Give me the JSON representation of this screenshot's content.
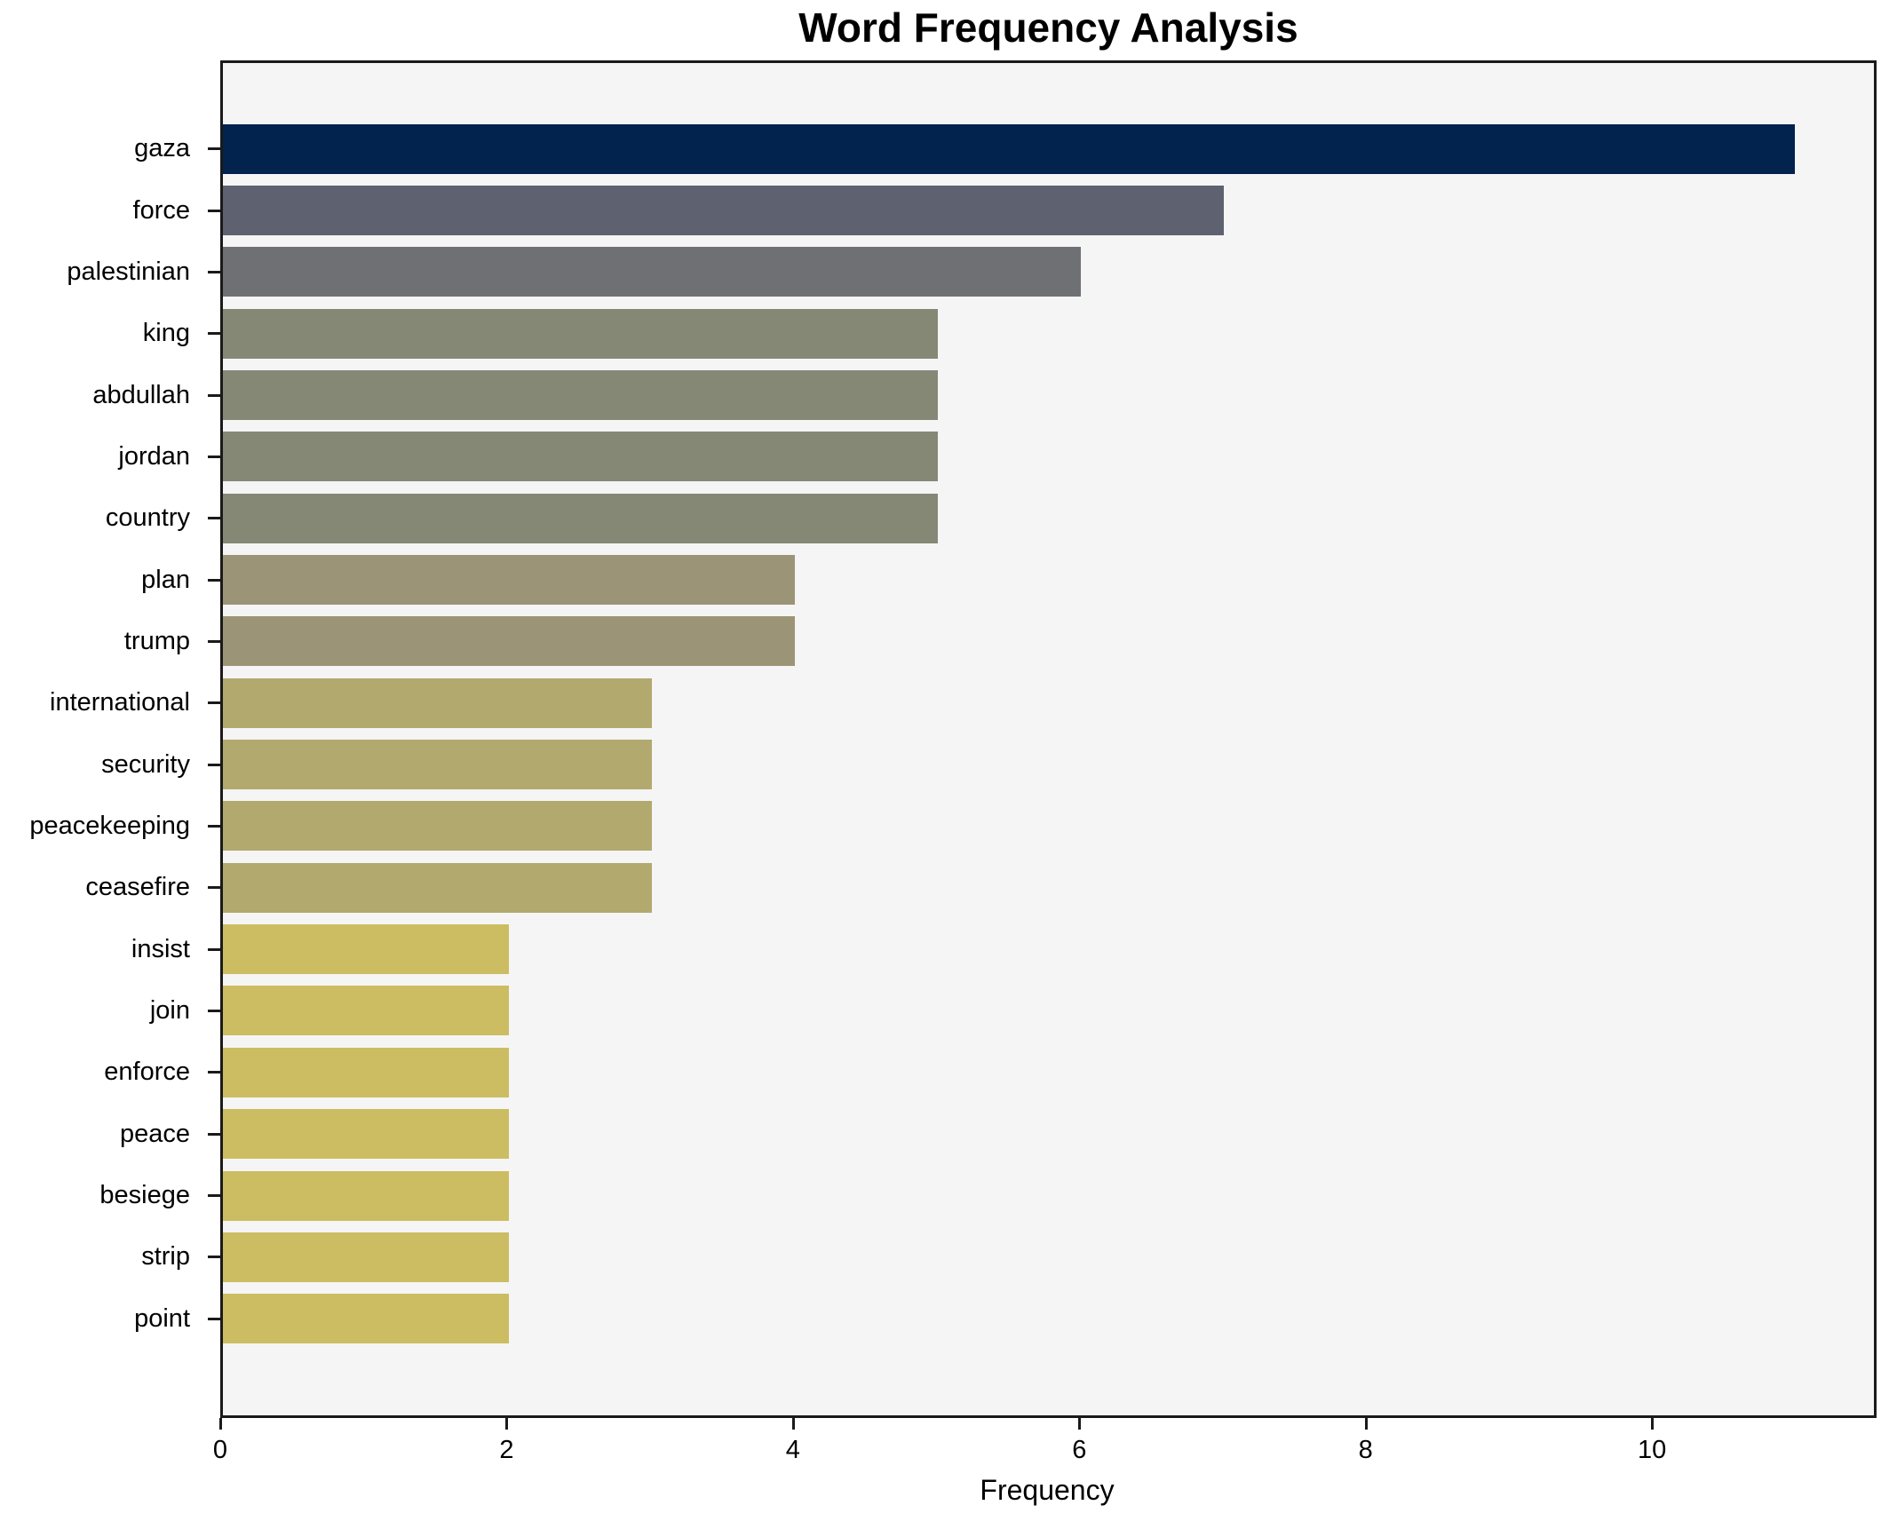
{
  "page": {
    "background": "#ffffff"
  },
  "chart": {
    "title": "Word Frequency Analysis",
    "xlabel": "Frequency",
    "plot_background": "#f5f5f6",
    "spine_color": "#1a1a1a",
    "text_color": "#000000"
  },
  "chart_data": {
    "type": "bar",
    "orientation": "horizontal",
    "title": "Word Frequency Analysis",
    "xlabel": "Frequency",
    "ylabel": "",
    "grid": false,
    "legend": null,
    "xlim": [
      0,
      11.55
    ],
    "xticks": [
      0,
      2,
      4,
      6,
      8,
      10
    ],
    "categories": [
      "gaza",
      "force",
      "palestinian",
      "king",
      "abdullah",
      "jordan",
      "country",
      "plan",
      "trump",
      "international",
      "security",
      "peacekeeping",
      "ceasefire",
      "insist",
      "join",
      "enforce",
      "peace",
      "besiege",
      "strip",
      "point"
    ],
    "values": [
      11,
      7,
      6,
      5,
      5,
      5,
      5,
      4,
      4,
      3,
      3,
      3,
      3,
      2,
      2,
      2,
      2,
      2,
      2,
      2
    ],
    "bar_colors": [
      "#02234e",
      "#5e6170",
      "#6f7073",
      "#868876",
      "#868876",
      "#868876",
      "#868876",
      "#9c9476",
      "#9c9476",
      "#b2a96e",
      "#b2a96e",
      "#b2a96e",
      "#b2a96e",
      "#ccbd62",
      "#ccbd62",
      "#ccbd62",
      "#ccbd62",
      "#ccbd62",
      "#ccbd62",
      "#ccbd62"
    ]
  }
}
